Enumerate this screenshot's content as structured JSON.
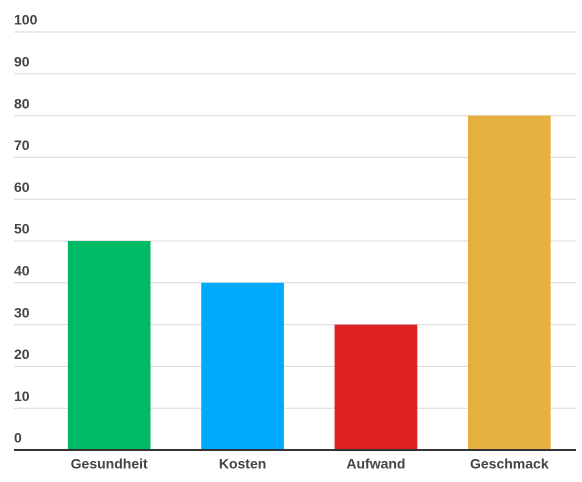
{
  "chart_data": {
    "type": "bar",
    "categories": [
      "Gesundheit",
      "Kosten",
      "Aufwand",
      "Geschmack"
    ],
    "values": [
      50,
      40,
      30,
      80
    ],
    "colors": [
      "#00bb66",
      "#00aaff",
      "#dd2020",
      "#e6b040"
    ],
    "ylim": [
      0,
      100
    ],
    "yticks": [
      0,
      10,
      20,
      30,
      40,
      50,
      60,
      70,
      80,
      90,
      100
    ],
    "grid": true
  }
}
